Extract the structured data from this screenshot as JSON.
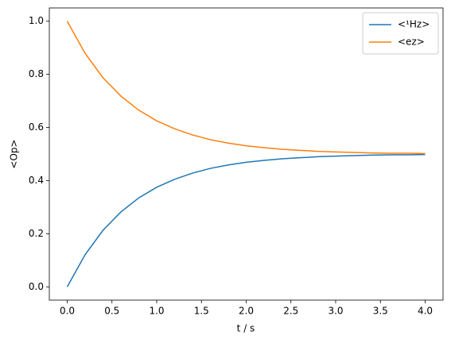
{
  "chart_data": {
    "type": "line",
    "x_label": "t / s",
    "y_label": "<Op>",
    "x": [
      0,
      0.2,
      0.4,
      0.6,
      0.8,
      1.0,
      1.2,
      1.4,
      1.6,
      1.8,
      2.0,
      2.2,
      2.4,
      2.6,
      2.8,
      3.0,
      3.2,
      3.4,
      3.6,
      3.8,
      4.0
    ],
    "series": [
      {
        "name": "<¹Hz>",
        "color": "#1f77b4",
        "values": [
          0,
          0.121,
          0.213,
          0.282,
          0.335,
          0.375,
          0.405,
          0.428,
          0.446,
          0.459,
          0.469,
          0.476,
          0.482,
          0.486,
          0.49,
          0.492,
          0.494,
          0.496,
          0.497,
          0.497,
          0.498
        ]
      },
      {
        "name": "<ez>",
        "color": "#ff7f0e",
        "values": [
          1,
          0.879,
          0.787,
          0.718,
          0.665,
          0.625,
          0.595,
          0.572,
          0.554,
          0.541,
          0.531,
          0.524,
          0.518,
          0.514,
          0.51,
          0.508,
          0.506,
          0.504,
          0.503,
          0.503,
          0.502
        ]
      }
    ],
    "xlim": [
      -0.2,
      4.2
    ],
    "ylim": [
      -0.05,
      1.05
    ],
    "xticks": [
      {
        "value": 0,
        "label": "0.0"
      },
      {
        "value": 0.5,
        "label": "0.5"
      },
      {
        "value": 1,
        "label": "1.0"
      },
      {
        "value": 1.5,
        "label": "1.5"
      },
      {
        "value": 2,
        "label": "2.0"
      },
      {
        "value": 2.5,
        "label": "2.5"
      },
      {
        "value": 3,
        "label": "3.0"
      },
      {
        "value": 3.5,
        "label": "3.5"
      },
      {
        "value": 4,
        "label": "4.0"
      }
    ],
    "yticks": [
      {
        "value": 0,
        "label": "0.0"
      },
      {
        "value": 0.2,
        "label": "0.2"
      },
      {
        "value": 0.4,
        "label": "0.4"
      },
      {
        "value": 0.6,
        "label": "0.6"
      },
      {
        "value": 0.8,
        "label": "0.8"
      },
      {
        "value": 1,
        "label": "1.0"
      }
    ],
    "legend": "upper right"
  }
}
